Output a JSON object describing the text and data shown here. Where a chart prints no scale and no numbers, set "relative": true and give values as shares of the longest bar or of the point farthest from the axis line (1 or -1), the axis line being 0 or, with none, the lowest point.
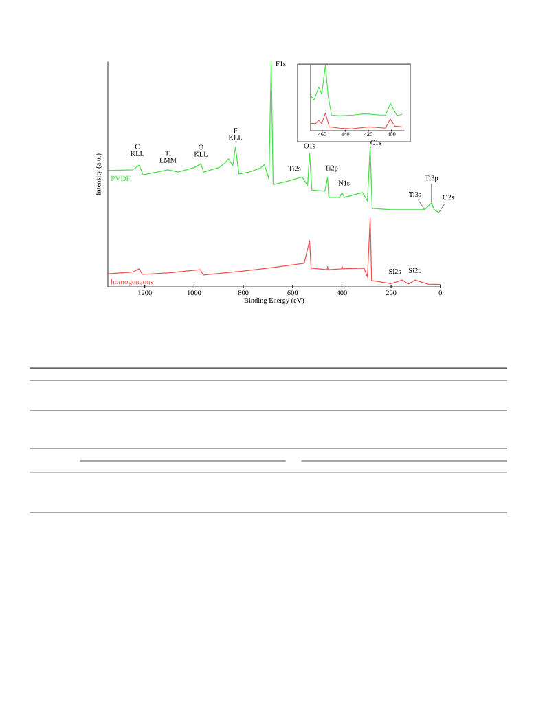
{
  "chart_data": [
    {
      "type": "line",
      "relative": true,
      "xlabel": "Binding Energy (eV)",
      "ylabel": "Intensity (a.u.)",
      "xlim": [
        1350,
        0
      ],
      "xticks": [
        1200,
        1000,
        800,
        600,
        400,
        200,
        0
      ],
      "grid": false,
      "legend": false,
      "series": [
        {
          "name": "PVDF",
          "color": "#44e044",
          "x": [
            1350,
            1250,
            1223,
            1207,
            1150,
            1106,
            1064,
            1000,
            972,
            961,
            900,
            877,
            860,
            843,
            832,
            818,
            776,
            729,
            715,
            696,
            687,
            679,
            673,
            620,
            570,
            561,
            539,
            531,
            522,
            469,
            458,
            453,
            410,
            399,
            390,
            316,
            296,
            285,
            277,
            200,
            142,
            64,
            36,
            25,
            6
          ],
          "values": [
            0.517,
            0.52,
            0.541,
            0.498,
            0.51,
            0.52,
            0.51,
            0.53,
            0.547,
            0.51,
            0.53,
            0.547,
            0.569,
            0.538,
            0.621,
            0.502,
            0.51,
            0.529,
            0.544,
            0.48,
            1.0,
            0.456,
            0.456,
            0.47,
            0.486,
            0.488,
            0.45,
            0.593,
            0.431,
            0.425,
            0.486,
            0.398,
            0.398,
            0.419,
            0.398,
            0.419,
            0.382,
            0.624,
            0.349,
            0.343,
            0.343,
            0.343,
            0.373,
            0.343,
            0.33
          ]
        },
        {
          "name": "homogeneous",
          "color": "#f05050",
          "x": [
            1350,
            1250,
            1223,
            1210,
            1100,
            975,
            962,
            800,
            677,
            553,
            531,
            525,
            460,
            458,
            455,
            402,
            399,
            396,
            310,
            296,
            285,
            279,
            200,
            154,
            130,
            103,
            50,
            0
          ],
          "values": [
            0.058,
            0.065,
            0.08,
            0.055,
            0.062,
            0.076,
            0.052,
            0.07,
            0.086,
            0.104,
            0.205,
            0.083,
            0.076,
            0.09,
            0.076,
            0.08,
            0.09,
            0.08,
            0.083,
            0.043,
            0.306,
            0.028,
            0.014,
            0.03,
            0.012,
            0.03,
            0.012,
            0.01
          ]
        }
      ],
      "annotations": [
        {
          "text": "C\nKLL",
          "x": 1223,
          "y": 0.541
        },
        {
          "text": "Ti\nLMM",
          "x": 1106,
          "y": 0.52
        },
        {
          "text": "O\nKLL",
          "x": 972,
          "y": 0.547
        },
        {
          "text": "F\nKLL",
          "x": 832,
          "y": 0.621
        },
        {
          "text": "F1s",
          "x": 687,
          "y": 1.0
        },
        {
          "text": "O1s",
          "x": 531,
          "y": 0.593
        },
        {
          "text": "Ti2s",
          "x": 561,
          "y": 0.488
        },
        {
          "text": "Ti2p",
          "x": 458,
          "y": 0.486
        },
        {
          "text": "N1s",
          "x": 399,
          "y": 0.419
        },
        {
          "text": "C1s",
          "x": 285,
          "y": 0.624
        },
        {
          "text": "Ti3s",
          "x": 64,
          "y": 0.343
        },
        {
          "text": "Ti3p",
          "x": 36,
          "y": 0.373
        },
        {
          "text": "O2s",
          "x": 6,
          "y": 0.33
        },
        {
          "text": "Si2s",
          "x": 154,
          "y": 0.03
        },
        {
          "text": "Si2p",
          "x": 103,
          "y": 0.03
        }
      ]
    },
    {
      "type": "line",
      "relative": true,
      "xlim": [
        470,
        389
      ],
      "xticks": [
        460,
        440,
        420,
        400
      ],
      "grid": false,
      "legend": false,
      "series": [
        {
          "color": "#44e044",
          "x": [
            470,
            467,
            463,
            460.4,
            457.2,
            454.9,
            451.9,
            445,
            433,
            423,
            410,
            405,
            400.9,
            395.3,
            391
          ],
          "values": [
            0.538,
            0.47,
            0.67,
            0.56,
            1.0,
            0.54,
            0.24,
            0.23,
            0.24,
            0.26,
            0.24,
            0.24,
            0.42,
            0.235,
            0.25
          ]
        },
        {
          "color": "#f05050",
          "x": [
            470,
            465.6,
            463,
            460.4,
            457.2,
            453.9,
            445,
            435,
            419,
            405,
            401,
            397,
            391
          ],
          "values": [
            0.11,
            0.11,
            0.16,
            0.11,
            0.27,
            0.06,
            0.04,
            0.03,
            0.06,
            0.04,
            0.18,
            0.07,
            0.06
          ]
        }
      ]
    }
  ]
}
